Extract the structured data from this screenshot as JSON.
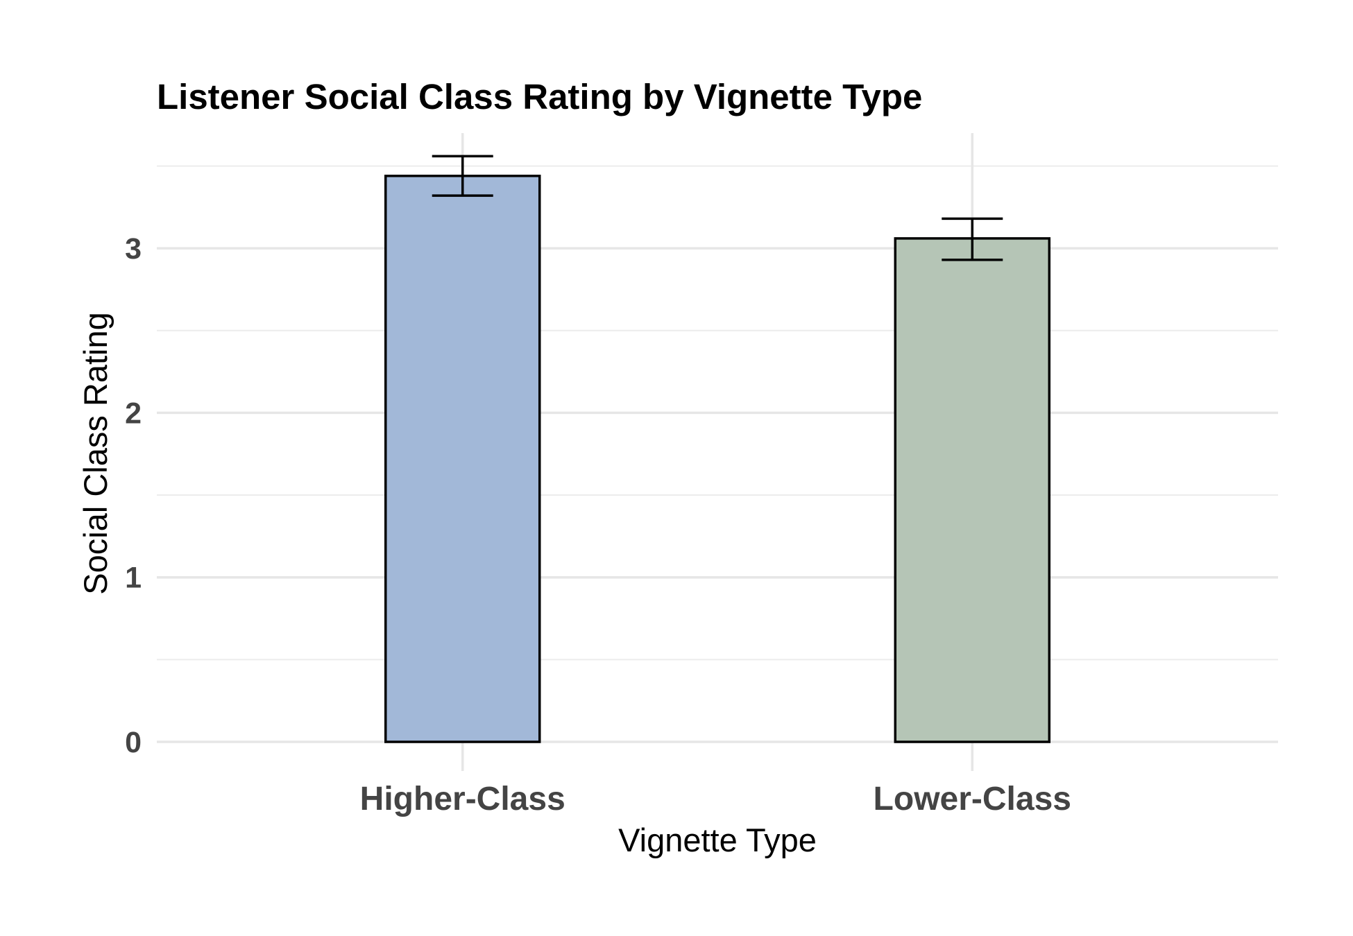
{
  "chart_data": {
    "type": "bar",
    "title": "Listener Social Class Rating by Vignette Type",
    "xlabel": "Vignette Type",
    "ylabel": "Social Class Rating",
    "categories": [
      "Higher-Class",
      "Lower-Class"
    ],
    "values": [
      3.44,
      3.06
    ],
    "error_low": [
      3.32,
      2.93
    ],
    "error_high": [
      3.56,
      3.18
    ],
    "colors": [
      "#a2b8d8",
      "#b5c5b6"
    ],
    "ylim": [
      0,
      3.7
    ],
    "yticks": [
      0,
      1,
      2,
      3
    ],
    "ytick_labels": [
      "0",
      "1",
      "2",
      "3"
    ],
    "grid": true,
    "legend": "none"
  }
}
